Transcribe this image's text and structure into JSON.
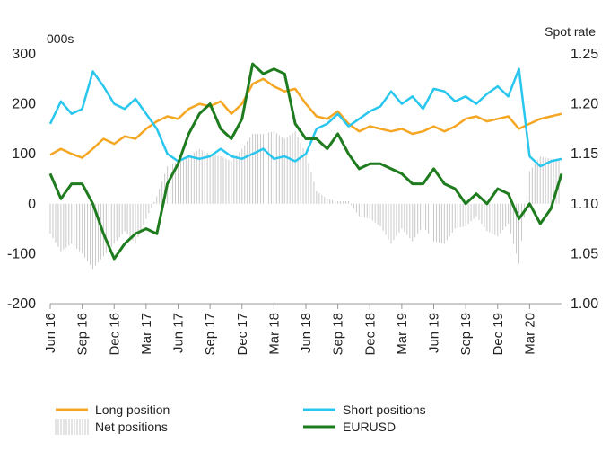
{
  "chart_data": {
    "type": "line",
    "left_unit": "000s",
    "right_unit": "Spot rate",
    "ylim_left": [
      -200,
      300
    ],
    "ylim_right": [
      1.0,
      1.25
    ],
    "left_ticks": [
      "300",
      "200",
      "100",
      "0",
      "-100",
      "-200"
    ],
    "right_ticks": [
      "1.25",
      "1.20",
      "1.15",
      "1.10",
      "1.05",
      "1.00"
    ],
    "x_ticks": [
      "Jun 16",
      "Sep 16",
      "Dec 16",
      "Mar 17",
      "Jun 17",
      "Sep 17",
      "Dec 17",
      "Mar 18",
      "Jun 18",
      "Sep 18",
      "Dec 18",
      "Mar 19",
      "Jun 19",
      "Sep 19",
      "Dec 19",
      "Mar 20"
    ],
    "x_range": [
      "2016-06",
      "2020-06"
    ],
    "legend_position": "bottom",
    "series": [
      {
        "name": "Long position",
        "axis": "left",
        "color": "#f5a623",
        "x": [
          "2016-06",
          "2016-07",
          "2016-08",
          "2016-09",
          "2016-10",
          "2016-11",
          "2016-12",
          "2017-01",
          "2017-02",
          "2017-03",
          "2017-04",
          "2017-05",
          "2017-06",
          "2017-07",
          "2017-08",
          "2017-09",
          "2017-10",
          "2017-11",
          "2017-12",
          "2018-01",
          "2018-02",
          "2018-03",
          "2018-04",
          "2018-05",
          "2018-06",
          "2018-07",
          "2018-08",
          "2018-09",
          "2018-10",
          "2018-11",
          "2018-12",
          "2019-01",
          "2019-02",
          "2019-03",
          "2019-04",
          "2019-05",
          "2019-06",
          "2019-07",
          "2019-08",
          "2019-09",
          "2019-10",
          "2019-11",
          "2019-12",
          "2020-01",
          "2020-02",
          "2020-03",
          "2020-04",
          "2020-05",
          "2020-06"
        ],
        "values": [
          98,
          110,
          100,
          92,
          110,
          130,
          120,
          135,
          130,
          150,
          165,
          175,
          170,
          190,
          200,
          195,
          205,
          180,
          200,
          240,
          250,
          235,
          225,
          230,
          200,
          175,
          170,
          185,
          160,
          145,
          155,
          150,
          145,
          150,
          140,
          145,
          155,
          145,
          155,
          170,
          175,
          165,
          170,
          175,
          150,
          160,
          170,
          175,
          180
        ]
      },
      {
        "name": "Short positions",
        "axis": "left",
        "color": "#29c6ee",
        "x": [
          "2016-06",
          "2016-07",
          "2016-08",
          "2016-09",
          "2016-10",
          "2016-11",
          "2016-12",
          "2017-01",
          "2017-02",
          "2017-03",
          "2017-04",
          "2017-05",
          "2017-06",
          "2017-07",
          "2017-08",
          "2017-09",
          "2017-10",
          "2017-11",
          "2017-12",
          "2018-01",
          "2018-02",
          "2018-03",
          "2018-04",
          "2018-05",
          "2018-06",
          "2018-07",
          "2018-08",
          "2018-09",
          "2018-10",
          "2018-11",
          "2018-12",
          "2019-01",
          "2019-02",
          "2019-03",
          "2019-04",
          "2019-05",
          "2019-06",
          "2019-07",
          "2019-08",
          "2019-09",
          "2019-10",
          "2019-11",
          "2019-12",
          "2020-01",
          "2020-02",
          "2020-03",
          "2020-04",
          "2020-05",
          "2020-06"
        ],
        "values": [
          160,
          205,
          180,
          190,
          265,
          235,
          200,
          190,
          210,
          180,
          150,
          100,
          85,
          95,
          90,
          95,
          110,
          95,
          90,
          100,
          110,
          90,
          95,
          85,
          100,
          150,
          160,
          180,
          155,
          170,
          185,
          195,
          225,
          200,
          215,
          190,
          230,
          225,
          205,
          215,
          200,
          220,
          235,
          215,
          270,
          95,
          75,
          85,
          90
        ]
      },
      {
        "name": "Net positions",
        "axis": "left",
        "color": "#c8c8c8",
        "x": [
          "2016-06",
          "2016-07",
          "2016-08",
          "2016-09",
          "2016-10",
          "2016-11",
          "2016-12",
          "2017-01",
          "2017-02",
          "2017-03",
          "2017-04",
          "2017-05",
          "2017-06",
          "2017-07",
          "2017-08",
          "2017-09",
          "2017-10",
          "2017-11",
          "2017-12",
          "2018-01",
          "2018-02",
          "2018-03",
          "2018-04",
          "2018-05",
          "2018-06",
          "2018-07",
          "2018-08",
          "2018-09",
          "2018-10",
          "2018-11",
          "2018-12",
          "2019-01",
          "2019-02",
          "2019-03",
          "2019-04",
          "2019-05",
          "2019-06",
          "2019-07",
          "2019-08",
          "2019-09",
          "2019-10",
          "2019-11",
          "2019-12",
          "2020-01",
          "2020-02",
          "2020-03",
          "2020-04",
          "2020-05",
          "2020-06"
        ],
        "values": [
          -60,
          -95,
          -80,
          -100,
          -130,
          -105,
          -80,
          -55,
          -80,
          -30,
          15,
          75,
          85,
          95,
          110,
          100,
          95,
          85,
          110,
          140,
          140,
          145,
          130,
          145,
          100,
          25,
          10,
          5,
          5,
          -25,
          -30,
          -45,
          -80,
          -50,
          -75,
          -45,
          -75,
          -80,
          -50,
          -45,
          -25,
          -55,
          -65,
          -40,
          -120,
          65,
          95,
          90,
          90
        ]
      },
      {
        "name": "EURUSD",
        "axis": "right",
        "color": "#1e7b1e",
        "x": [
          "2016-06",
          "2016-07",
          "2016-08",
          "2016-09",
          "2016-10",
          "2016-11",
          "2016-12",
          "2017-01",
          "2017-02",
          "2017-03",
          "2017-04",
          "2017-05",
          "2017-06",
          "2017-07",
          "2017-08",
          "2017-09",
          "2017-10",
          "2017-11",
          "2017-12",
          "2018-01",
          "2018-02",
          "2018-03",
          "2018-04",
          "2018-05",
          "2018-06",
          "2018-07",
          "2018-08",
          "2018-09",
          "2018-10",
          "2018-11",
          "2018-12",
          "2019-01",
          "2019-02",
          "2019-03",
          "2019-04",
          "2019-05",
          "2019-06",
          "2019-07",
          "2019-08",
          "2019-09",
          "2019-10",
          "2019-11",
          "2019-12",
          "2020-01",
          "2020-02",
          "2020-03",
          "2020-04",
          "2020-05",
          "2020-06"
        ],
        "values": [
          1.13,
          1.105,
          1.12,
          1.12,
          1.1,
          1.07,
          1.045,
          1.06,
          1.07,
          1.075,
          1.07,
          1.12,
          1.14,
          1.17,
          1.19,
          1.2,
          1.175,
          1.165,
          1.185,
          1.24,
          1.23,
          1.235,
          1.23,
          1.18,
          1.165,
          1.165,
          1.155,
          1.17,
          1.15,
          1.135,
          1.14,
          1.14,
          1.135,
          1.13,
          1.12,
          1.12,
          1.135,
          1.12,
          1.115,
          1.1,
          1.11,
          1.1,
          1.115,
          1.11,
          1.085,
          1.1,
          1.08,
          1.095,
          1.13
        ]
      }
    ]
  }
}
